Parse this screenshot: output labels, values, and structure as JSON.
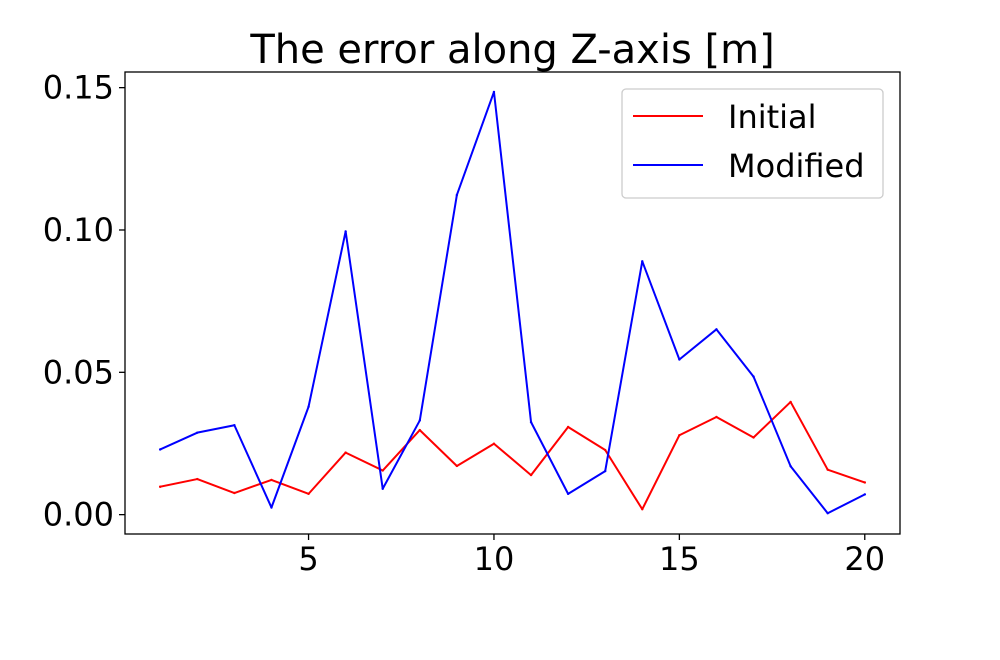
{
  "chart_data": {
    "type": "line",
    "title": "The error along Z-axis [m]",
    "xlabel": "",
    "ylabel": "",
    "xlim": [
      0.05,
      20.95
    ],
    "ylim": [
      -0.0068,
      0.1555
    ],
    "xticks": [
      5,
      10,
      15,
      20
    ],
    "xtick_labels": [
      "5",
      "10",
      "15",
      "20"
    ],
    "yticks": [
      0.0,
      0.05,
      0.1,
      0.15
    ],
    "ytick_labels": [
      "0.00",
      "0.05",
      "0.10",
      "0.15"
    ],
    "grid": false,
    "legend_position": "top-right",
    "x": [
      1,
      2,
      3,
      4,
      5,
      6,
      7,
      8,
      9,
      10,
      11,
      12,
      13,
      14,
      15,
      16,
      17,
      18,
      19,
      20
    ],
    "series": [
      {
        "name": "Initial",
        "color": "#ff0000",
        "values": [
          0.0098,
          0.0125,
          0.0076,
          0.0122,
          0.0073,
          0.0218,
          0.0155,
          0.0297,
          0.0171,
          0.0249,
          0.0139,
          0.0308,
          0.0227,
          0.0019,
          0.0279,
          0.0343,
          0.0271,
          0.0396,
          0.0158,
          0.0113
        ]
      },
      {
        "name": "Modified",
        "color": "#0000ff",
        "values": [
          0.0229,
          0.0288,
          0.0314,
          0.0025,
          0.0379,
          0.0995,
          0.0091,
          0.0331,
          0.1123,
          0.1485,
          0.0325,
          0.0073,
          0.0153,
          0.089,
          0.0545,
          0.0651,
          0.0485,
          0.017,
          0.0005,
          0.0071
        ]
      }
    ]
  }
}
